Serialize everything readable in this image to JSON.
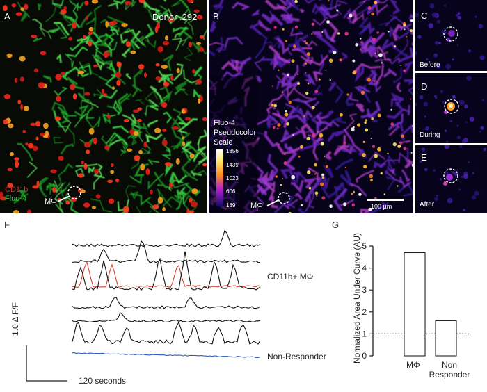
{
  "panel_a": {
    "letter": "A",
    "donor": "Donor .292",
    "legend_cd11b": "CD11b",
    "legend_fluo4": "Fluo-4",
    "cell_label": "MΦ",
    "colors": {
      "cd11b": "#e8241c",
      "fluo4": "#2fd33a"
    }
  },
  "panel_b": {
    "letter": "B",
    "scale_title_line1": "Fluo-4",
    "scale_title_line2": "Pseudocolor",
    "scale_title_line3": "Scale",
    "scale_ticks": [
      "1856",
      "1439",
      "1023",
      "606",
      "189"
    ],
    "cell_label": "MΦ",
    "scalebar_label": "100 µm"
  },
  "panel_c": {
    "letter": "C",
    "caption": "Before"
  },
  "panel_d": {
    "letter": "D",
    "caption": "During"
  },
  "panel_e": {
    "letter": "E",
    "caption": "After"
  },
  "panel_f": {
    "letter": "F",
    "responder_label": "CD11b+ MΦ",
    "non_responder_label": "Non-Responder",
    "scalebar_y": "1.0 Δ F/F",
    "scalebar_x": "120 seconds",
    "colors": {
      "trace": "#111111",
      "highlight": "#d9412b",
      "non_responder": "#2c5bc4"
    }
  },
  "panel_g": {
    "letter": "G",
    "ylabel": "Normalized Area Under Curve (AU)",
    "xtick_1": "MΦ",
    "xtick_2_line1": "Non",
    "xtick_2_line2": "Responder"
  },
  "chart_data": {
    "type": "bar",
    "categories": [
      "MΦ",
      "Non Responder"
    ],
    "values": [
      4.7,
      1.6
    ],
    "title": "",
    "xlabel": "",
    "ylabel": "Normalized Area Under Curve (AU)",
    "ylim": [
      0,
      5
    ],
    "yticks": [
      0,
      1,
      2,
      3,
      4,
      5
    ],
    "reference_line": 1
  }
}
